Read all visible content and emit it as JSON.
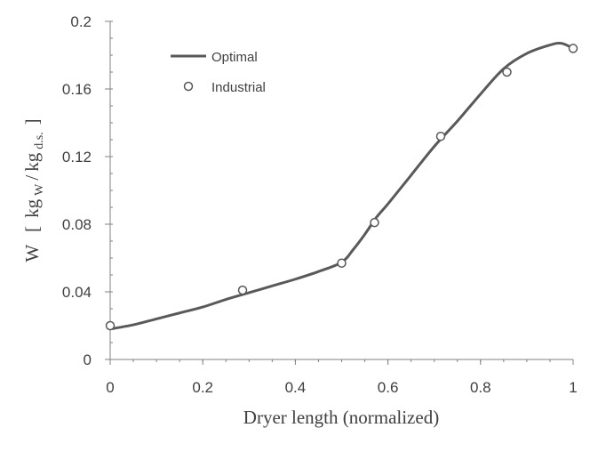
{
  "chart_data": {
    "type": "line",
    "xlabel": "Dryer length (normalized)",
    "ylabel": {
      "symbol": "W",
      "open": "[",
      "kg1": "kg",
      "sub1": "W",
      "slash": "/",
      "kg2": "kg",
      "sub2": "d.s.",
      "close": "]"
    },
    "xlim": [
      0,
      1
    ],
    "ylim": [
      0,
      0.2
    ],
    "x_ticks": [
      {
        "value": 0,
        "label": "0"
      },
      {
        "value": 0.2,
        "label": "0.2"
      },
      {
        "value": 0.4,
        "label": "0.4"
      },
      {
        "value": 0.6,
        "label": "0.6"
      },
      {
        "value": 0.8,
        "label": "0.8"
      },
      {
        "value": 1,
        "label": "1"
      }
    ],
    "y_ticks": [
      {
        "value": 0,
        "label": "0"
      },
      {
        "value": 0.04,
        "label": "0.04"
      },
      {
        "value": 0.08,
        "label": "0.08"
      },
      {
        "value": 0.12,
        "label": "0.12"
      },
      {
        "value": 0.16,
        "label": "0.16"
      },
      {
        "value": 0.2,
        "label": "0.2"
      }
    ],
    "grid": false,
    "legend_position": "top-left",
    "series": [
      {
        "name": "Optimal",
        "style": "line",
        "color": "#595959",
        "x": [
          0,
          0.05,
          0.1,
          0.15,
          0.2,
          0.25,
          0.3,
          0.35,
          0.4,
          0.45,
          0.5,
          0.525,
          0.55,
          0.575,
          0.6,
          0.65,
          0.7,
          0.75,
          0.8,
          0.85,
          0.9,
          0.95,
          0.975,
          1.0
        ],
        "y": [
          0.018,
          0.0205,
          0.024,
          0.0275,
          0.031,
          0.0355,
          0.0395,
          0.0435,
          0.0475,
          0.052,
          0.0575,
          0.065,
          0.074,
          0.084,
          0.092,
          0.109,
          0.126,
          0.141,
          0.157,
          0.172,
          0.181,
          0.186,
          0.187,
          0.184
        ]
      },
      {
        "name": "Industrial",
        "style": "marker",
        "marker": "open-circle",
        "color": "#595959",
        "x": [
          0,
          0.286,
          0.5,
          0.571,
          0.714,
          0.857,
          1.0
        ],
        "y": [
          0.02,
          0.041,
          0.057,
          0.081,
          0.132,
          0.17,
          0.184
        ]
      }
    ]
  }
}
